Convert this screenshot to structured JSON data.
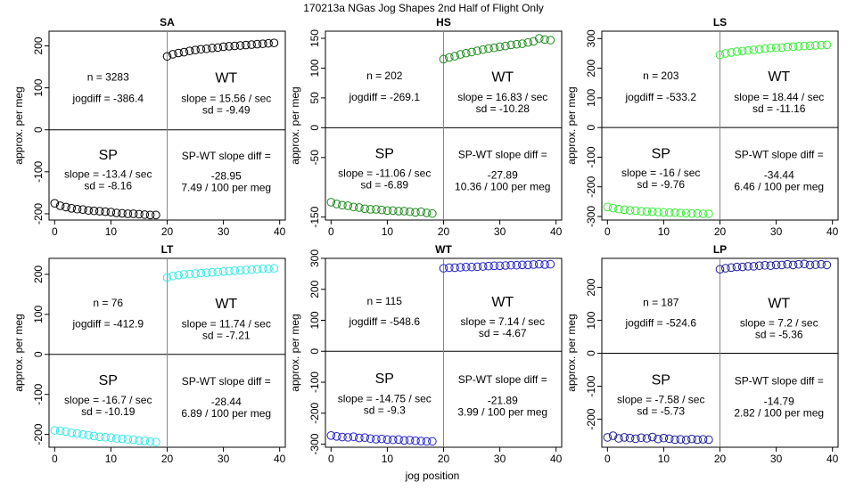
{
  "page": {
    "title": "170213a    NGas Jog Shapes 2nd Half of Flight Only",
    "xlabel": "jog position"
  },
  "chart_data": [
    {
      "type": "scatter",
      "title": "SA",
      "color": "#000000",
      "ylabel": "approx. per meg",
      "xlim": [
        -1,
        41
      ],
      "xticks": [
        0,
        10,
        20,
        30,
        40
      ],
      "ylim": [
        -215,
        235
      ],
      "yticks": [
        -200,
        -100,
        0,
        100,
        200
      ],
      "sp_values": [
        -175,
        -181,
        -184,
        -187,
        -189,
        -190,
        -192,
        -193,
        -194,
        -195,
        -196,
        -198,
        -199,
        -200,
        -200,
        -201,
        -202,
        -203,
        -203
      ],
      "wt_values": [
        175,
        180,
        183,
        185,
        188,
        190,
        192,
        193,
        195,
        196,
        198,
        199,
        200,
        201,
        202,
        203,
        204,
        205,
        206,
        207
      ],
      "n_label": "n = 3283",
      "jogdiff_label": "jogdiff = -386.4",
      "wt_title": "WT",
      "wt_slope": "slope = 15.56 / sec",
      "wt_sd": "sd = -9.49",
      "sp_title": "SP",
      "sp_slope": "slope = -13.4 / sec",
      "sp_sd": "sd = -8.16",
      "diff_label": "SP-WT slope diff =",
      "diff_value": "-28.95",
      "diff_per": "7.49 / 100 per meg"
    },
    {
      "type": "scatter",
      "title": "HS",
      "color": "#1a8a1a",
      "ylabel": "approx. per meg",
      "xlim": [
        -1,
        41
      ],
      "xticks": [
        0,
        10,
        20,
        30,
        40
      ],
      "ylim": [
        -155,
        162
      ],
      "yticks": [
        -150,
        -50,
        0,
        50,
        100,
        150
      ],
      "sp_values": [
        -125,
        -128,
        -130,
        -131,
        -133,
        -134,
        -136,
        -137,
        -137,
        -138,
        -139,
        -139,
        -140,
        -140,
        -141,
        -142,
        -141,
        -143,
        -144
      ],
      "wt_values": [
        115,
        118,
        120,
        123,
        125,
        127,
        129,
        131,
        133,
        134,
        136,
        137,
        139,
        140,
        141,
        143,
        145,
        150,
        148,
        147
      ],
      "n_label": "n = 202",
      "jogdiff_label": "jogdiff = -269.1",
      "wt_title": "WT",
      "wt_slope": "slope = 16.83 / sec",
      "wt_sd": "sd = -10.28",
      "sp_title": "SP",
      "sp_slope": "slope = -11.06 / sec",
      "sp_sd": "sd = -6.89",
      "diff_label": "SP-WT slope diff =",
      "diff_value": "-27.89",
      "diff_per": "10.36 / 100 per meg"
    },
    {
      "type": "scatter",
      "title": "LS",
      "color": "#33ee33",
      "ylabel": "approx. per meg",
      "xlim": [
        -1,
        41
      ],
      "xticks": [
        0,
        10,
        20,
        30,
        40
      ],
      "ylim": [
        -312,
        325
      ],
      "yticks": [
        -300,
        -200,
        -100,
        0,
        100,
        200,
        300
      ],
      "sp_values": [
        -268,
        -272,
        -275,
        -277,
        -279,
        -280,
        -282,
        -283,
        -284,
        -285,
        -286,
        -287,
        -287,
        -288,
        -289,
        -290,
        -290,
        -291,
        -291
      ],
      "wt_values": [
        245,
        250,
        253,
        256,
        258,
        260,
        262,
        264,
        266,
        268,
        269,
        270,
        272,
        273,
        274,
        275,
        276,
        277,
        278,
        279
      ],
      "n_label": "n = 203",
      "jogdiff_label": "jogdiff = -533.2",
      "wt_title": "WT",
      "wt_slope": "slope = 18.44 / sec",
      "wt_sd": "sd = -11.16",
      "sp_title": "SP",
      "sp_slope": "slope = -16 / sec",
      "sp_sd": "sd = -9.76",
      "diff_label": "SP-WT slope diff =",
      "diff_value": "-34.44",
      "diff_per": "6.46 / 100 per meg"
    },
    {
      "type": "scatter",
      "title": "LT",
      "color": "#33e8e8",
      "ylabel": "approx. per meg",
      "xlim": [
        -1,
        41
      ],
      "xticks": [
        0,
        10,
        20,
        30,
        40
      ],
      "ylim": [
        -232,
        240
      ],
      "yticks": [
        -200,
        -100,
        0,
        100,
        200
      ],
      "sp_values": [
        -190,
        -191,
        -193,
        -196,
        -198,
        -200,
        -202,
        -204,
        -206,
        -207,
        -208,
        -210,
        -211,
        -212,
        -213,
        -215,
        -216,
        -218,
        -219
      ],
      "wt_values": [
        192,
        196,
        198,
        200,
        201,
        202,
        203,
        204,
        205,
        206,
        207,
        208,
        209,
        210,
        211,
        212,
        213,
        214,
        214,
        215
      ],
      "n_label": "n = 76",
      "jogdiff_label": "jogdiff = -412.9",
      "wt_title": "WT",
      "wt_slope": "slope = 11.74 / sec",
      "wt_sd": "sd = -7.21",
      "sp_title": "SP",
      "sp_slope": "slope = -16.7 / sec",
      "sp_sd": "sd = -10.19",
      "diff_label": "SP-WT slope diff =",
      "diff_value": "-28.44",
      "diff_per": "6.89 / 100 per meg"
    },
    {
      "type": "scatter",
      "title": "WT",
      "color": "#2222cc",
      "ylabel": "approx. per meg",
      "xlim": [
        -1,
        41
      ],
      "xticks": [
        0,
        10,
        20,
        30,
        40
      ],
      "ylim": [
        -310,
        300
      ],
      "yticks": [
        -300,
        -200,
        -100,
        0,
        100,
        200,
        300
      ],
      "sp_values": [
        -272,
        -275,
        -277,
        -278,
        -276,
        -280,
        -279,
        -282,
        -284,
        -283,
        -285,
        -286,
        -285,
        -288,
        -287,
        -289,
        -290,
        -291,
        -291
      ],
      "wt_values": [
        268,
        270,
        270,
        271,
        272,
        272,
        273,
        274,
        275,
        276,
        276,
        277,
        278,
        278,
        279,
        279,
        280,
        281,
        280,
        281
      ],
      "n_label": "n = 115",
      "jogdiff_label": "jogdiff = -548.6",
      "wt_title": "WT",
      "wt_slope": "slope = 7.14 / sec",
      "wt_sd": "sd = -4.67",
      "sp_title": "SP",
      "sp_slope": "slope = -14.75 / sec",
      "sp_sd": "sd = -9.3",
      "diff_label": "SP-WT slope diff =",
      "diff_value": "-21.89",
      "diff_per": "3.99 / 100 per meg"
    },
    {
      "type": "scatter",
      "title": "LP",
      "color": "#1c1c99",
      "ylabel": "approx. per meg",
      "xlim": [
        -1,
        41
      ],
      "xticks": [
        0,
        10,
        20,
        30,
        40
      ],
      "ylim": [
        -285,
        288
      ],
      "yticks": [
        -200,
        -100,
        0,
        100,
        200
      ],
      "sp_values": [
        -255,
        -250,
        -258,
        -255,
        -257,
        -259,
        -256,
        -258,
        -254,
        -260,
        -257,
        -259,
        -262,
        -261,
        -263,
        -260,
        -262,
        -261,
        -262
      ],
      "wt_values": [
        255,
        258,
        260,
        262,
        262,
        264,
        264,
        266,
        267,
        266,
        268,
        268,
        270,
        268,
        270,
        271,
        268,
        269,
        270,
        268
      ],
      "n_label": "n = 187",
      "jogdiff_label": "jogdiff = -524.6",
      "wt_title": "WT",
      "wt_slope": "slope = 7.2 / sec",
      "wt_sd": "sd = -5.36",
      "sp_title": "SP",
      "sp_slope": "slope = -7.58 / sec",
      "sp_sd": "sd = -5.73",
      "diff_label": "SP-WT slope diff =",
      "diff_value": "-14.79",
      "diff_per": "2.82 / 100 per meg"
    }
  ]
}
